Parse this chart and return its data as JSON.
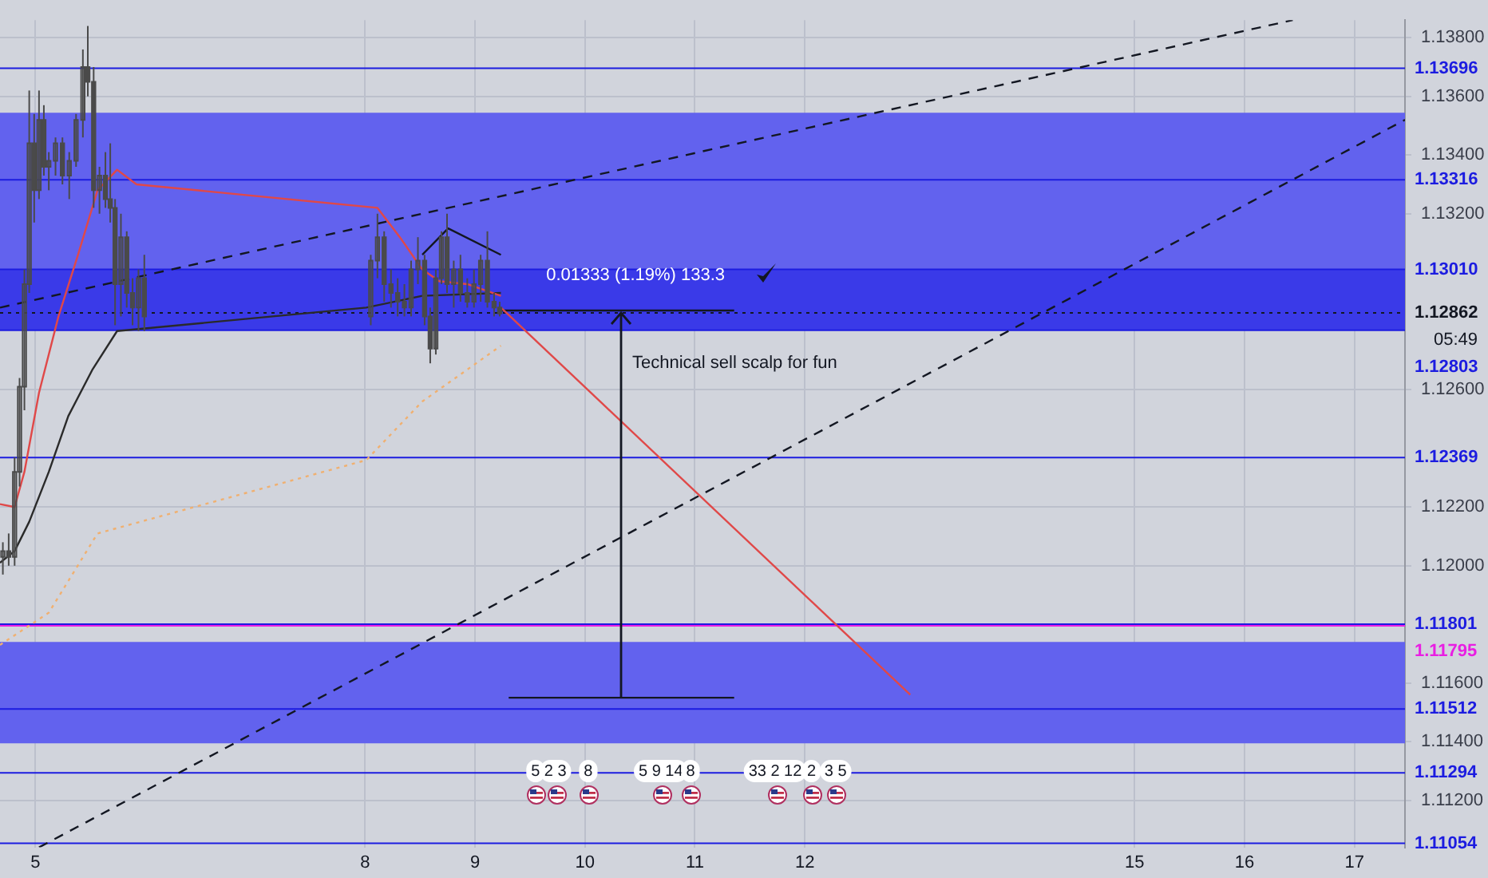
{
  "chart_data": {
    "type": "candlestick",
    "color": "#4a4a4a",
    "x": [
      4.704,
      4.757,
      4.811,
      4.856,
      4.9,
      4.944,
      4.989,
      5.033,
      5.077,
      5.122,
      5.183,
      5.246,
      5.308,
      5.37,
      5.432,
      5.477,
      5.53,
      5.583,
      5.637,
      5.681,
      5.725,
      5.778,
      5.831,
      5.884,
      5.938,
      5.991,
      8.051,
      8.112,
      8.173,
      8.235,
      8.296,
      8.357,
      8.418,
      8.48,
      8.541,
      8.592,
      8.643,
      8.694,
      8.745,
      8.806,
      8.867,
      8.929,
      8.99,
      9.051,
      9.112,
      9.173,
      9.224
    ],
    "ohlc": [
      [
        1.1203,
        1.1208,
        1.1197,
        1.1205
      ],
      [
        1.1205,
        1.1211,
        1.12,
        1.1203
      ],
      [
        1.1203,
        1.1237,
        1.12,
        1.1232
      ],
      [
        1.1232,
        1.1264,
        1.1227,
        1.1261
      ],
      [
        1.1261,
        1.1301,
        1.1253,
        1.1296
      ],
      [
        1.1296,
        1.1362,
        1.1293,
        1.1344
      ],
      [
        1.1344,
        1.1354,
        1.1317,
        1.1328
      ],
      [
        1.1328,
        1.1362,
        1.1325,
        1.1352
      ],
      [
        1.1352,
        1.1357,
        1.1333,
        1.1336
      ],
      [
        1.1336,
        1.1341,
        1.1328,
        1.1338
      ],
      [
        1.1338,
        1.1346,
        1.1333,
        1.1344
      ],
      [
        1.1344,
        1.1346,
        1.133,
        1.1333
      ],
      [
        1.1333,
        1.1341,
        1.1325,
        1.1338
      ],
      [
        1.1338,
        1.1354,
        1.1336,
        1.1352
      ],
      [
        1.1352,
        1.1376,
        1.1346,
        1.137
      ],
      [
        1.137,
        1.1384,
        1.136,
        1.1365
      ],
      [
        1.1365,
        1.137,
        1.1322,
        1.1328
      ],
      [
        1.1328,
        1.1336,
        1.132,
        1.1333
      ],
      [
        1.1333,
        1.1341,
        1.1322,
        1.1325
      ],
      [
        1.1325,
        1.1344,
        1.1317,
        1.1322
      ],
      [
        1.1322,
        1.1325,
        1.1282,
        1.1296
      ],
      [
        1.1296,
        1.132,
        1.1285,
        1.1312
      ],
      [
        1.1312,
        1.1314,
        1.1288,
        1.1293
      ],
      [
        1.1293,
        1.1298,
        1.1282,
        1.1288
      ],
      [
        1.1288,
        1.1301,
        1.128,
        1.1298
      ],
      [
        1.1298,
        1.1306,
        1.128,
        1.1285
      ],
      [
        1.1285,
        1.1306,
        1.1282,
        1.1304
      ],
      [
        1.1304,
        1.132,
        1.1298,
        1.1312
      ],
      [
        1.1312,
        1.1314,
        1.129,
        1.1296
      ],
      [
        1.1296,
        1.1301,
        1.1288,
        1.1293
      ],
      [
        1.1293,
        1.1298,
        1.1285,
        1.129
      ],
      [
        1.129,
        1.1296,
        1.1285,
        1.1288
      ],
      [
        1.1288,
        1.1304,
        1.1285,
        1.1301
      ],
      [
        1.1301,
        1.1312,
        1.1296,
        1.1304
      ],
      [
        1.1304,
        1.1306,
        1.1282,
        1.1285
      ],
      [
        1.1285,
        1.1288,
        1.1269,
        1.1274
      ],
      [
        1.1274,
        1.1301,
        1.1272,
        1.1298
      ],
      [
        1.1298,
        1.1314,
        1.1296,
        1.1312
      ],
      [
        1.1312,
        1.132,
        1.1293,
        1.1296
      ],
      [
        1.1296,
        1.1304,
        1.1288,
        1.1301
      ],
      [
        1.1301,
        1.1306,
        1.129,
        1.1293
      ],
      [
        1.1293,
        1.1298,
        1.1288,
        1.129
      ],
      [
        1.129,
        1.1301,
        1.1288,
        1.1296
      ],
      [
        1.1296,
        1.1306,
        1.129,
        1.1304
      ],
      [
        1.1304,
        1.1314,
        1.1288,
        1.129
      ],
      [
        1.129,
        1.1293,
        1.1285,
        1.1288
      ],
      [
        1.1288,
        1.129,
        1.1285,
        1.1286
      ]
    ],
    "series": [
      {
        "type": "line",
        "color": "#e04848",
        "x": [
          4.678,
          4.811,
          4.9,
          5.033,
          5.21,
          5.388,
          5.565,
          5.743,
          5.92,
          8.112,
          8.316,
          8.52,
          8.673,
          8.929,
          9.235
        ],
        "values": [
          1.1221,
          1.122,
          1.1232,
          1.1259,
          1.1285,
          1.1306,
          1.1328,
          1.1335,
          1.133,
          1.1322,
          1.1312,
          1.1301,
          1.1297,
          1.1296,
          1.1292
        ]
      },
      {
        "type": "line",
        "color": "#2a2a2a",
        "x": [
          4.678,
          4.811,
          4.944,
          5.122,
          5.299,
          5.521,
          5.743,
          8.01,
          8.52,
          9.235
        ],
        "values": [
          1.1201,
          1.1205,
          1.1215,
          1.1232,
          1.1251,
          1.1267,
          1.128,
          1.1288,
          1.1292,
          1.1293
        ]
      },
      {
        "type": "line",
        "color": "#f0b070",
        "line_style": "dotted",
        "x": [
          4.678,
          5.122,
          5.565,
          8.01,
          8.52,
          9.235
        ],
        "values": [
          1.1173,
          1.1184,
          1.1211,
          1.1236,
          1.1256,
          1.1275
        ]
      },
      {
        "type": "line",
        "color": "#e04848",
        "x": [
          9.235,
          12.959
        ],
        "values": [
          1.1288,
          1.1156
        ]
      },
      {
        "type": "line",
        "color": "#131722",
        "line_style": "dashed",
        "x": [
          4.678,
          16.439
        ],
        "values": [
          1.1288,
          1.1386
        ]
      },
      {
        "type": "line",
        "color": "#131722",
        "line_style": "dashed",
        "x": [
          5.033,
          17.46
        ],
        "values": [
          1.1104,
          1.1352
        ]
      },
      {
        "type": "line",
        "color": "#131722",
        "x": [
          8.52,
          8.755,
          9.235
        ],
        "values": [
          1.1306,
          1.1315,
          1.1306
        ]
      },
      {
        "type": "line",
        "color": "#131722",
        "x": [
          9.235,
          11.357
        ],
        "values": [
          1.1287,
          1.1287
        ]
      },
      {
        "type": "line",
        "color": "#131722",
        "x": [
          9.306,
          11.357
        ],
        "values": [
          1.1155,
          1.1155
        ]
      }
    ],
    "bands": [
      {
        "axis": "y",
        "from": 1.12803,
        "to": 1.13544,
        "color": "#6262ee"
      },
      {
        "axis": "y",
        "from": 1.12803,
        "to": 1.1301,
        "color": "#3a3ae8"
      },
      {
        "axis": "y",
        "from": 1.11395,
        "to": 1.1174,
        "color": "#6262ee"
      }
    ],
    "ref_lines": [
      {
        "axis": "y",
        "value": 1.13696,
        "label": "1.13696",
        "color": "#1c1ce0"
      },
      {
        "axis": "y",
        "value": 1.13316,
        "label": "1.13316",
        "color": "#1c1ce0"
      },
      {
        "axis": "y",
        "value": 1.1301,
        "label": "1.13010",
        "color": "#1c1ce0"
      },
      {
        "axis": "y",
        "value": 1.12862,
        "label": "1.12862",
        "color": "#131722",
        "line_style": "dotted"
      },
      {
        "axis": "y",
        "value": 1.12803,
        "label": "1.12803",
        "color": "#1c1ce0"
      },
      {
        "axis": "y",
        "value": 1.12369,
        "label": "1.12369",
        "color": "#1c1ce0"
      },
      {
        "axis": "y",
        "value": 1.11801,
        "label": "1.11801",
        "color": "#1c1ce0"
      },
      {
        "axis": "y",
        "value": 1.11795,
        "label": "1.11795",
        "color": "#e91ee3"
      },
      {
        "axis": "y",
        "value": 1.11512,
        "label": "1.11512",
        "color": "#1c1ce0"
      },
      {
        "axis": "y",
        "value": 1.11294,
        "label": "1.11294",
        "color": "#1c1ce0"
      },
      {
        "axis": "y",
        "value": 1.11054,
        "label": "1.11054",
        "color": "#1c1ce0"
      }
    ],
    "annotations": [
      {
        "text": "0.01333 (1.19%) 133.3",
        "x": 10.46,
        "y": 1.1299
      },
      "Technical sell scalp for fun",
      "05:49",
      {
        "text": "5",
        "x": 9.55,
        "y": 1.113
      },
      {
        "text": "2 3",
        "x": 9.73,
        "y": 1.113
      },
      {
        "text": "8",
        "x": 10.03,
        "y": 1.113
      },
      {
        "text": "5 9 14",
        "x": 10.69,
        "y": 1.113
      },
      {
        "text": "8",
        "x": 10.96,
        "y": 1.113
      },
      {
        "text": "33 2 12",
        "x": 11.73,
        "y": 1.113
      },
      {
        "text": "2",
        "x": 12.06,
        "y": 1.113
      },
      {
        "text": "3 5",
        "x": 12.28,
        "y": 1.113
      }
    ],
    "xlim": [
      4.678,
      17.46
    ],
    "ylim": [
      1.1104,
      1.1386
    ],
    "xticks": [
      5,
      8,
      9,
      10,
      11,
      12,
      15,
      16,
      17
    ],
    "yticks": [
      {
        "value": 1.138,
        "label": "1.13800"
      },
      {
        "value": 1.136,
        "label": "1.13600"
      },
      {
        "value": 1.134,
        "label": "1.13400"
      },
      {
        "value": 1.132,
        "label": "1.13200"
      },
      {
        "value": 1.126,
        "label": "1.12600"
      },
      {
        "value": 1.122,
        "label": "1.12200"
      },
      {
        "value": 1.12,
        "label": "1.12000"
      },
      {
        "value": 1.116,
        "label": "1.11600"
      },
      {
        "value": 1.114,
        "label": "1.11400"
      },
      {
        "value": 1.112,
        "label": "1.11200"
      }
    ],
    "grid": true,
    "legend": false,
    "marker": "none"
  }
}
